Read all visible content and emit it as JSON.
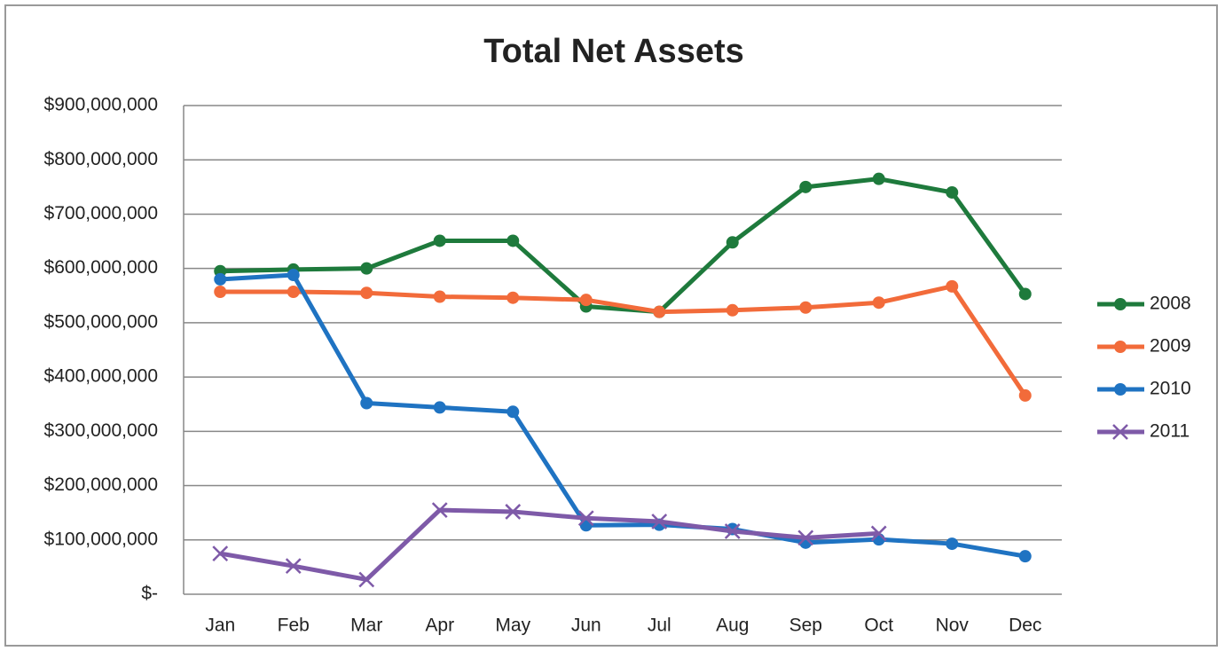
{
  "chart_data": {
    "type": "line",
    "title": "Total Net Assets",
    "categories": [
      "Jan",
      "Feb",
      "Mar",
      "Apr",
      "May",
      "Jun",
      "Jul",
      "Aug",
      "Sep",
      "Oct",
      "Nov",
      "Dec"
    ],
    "series": [
      {
        "name": "2008",
        "color": "#1e7a3c",
        "marker": "circle",
        "values": [
          595000000,
          598000000,
          600000000,
          651000000,
          651000000,
          530000000,
          520000000,
          648000000,
          750000000,
          765000000,
          740000000,
          553000000
        ]
      },
      {
        "name": "2009",
        "color": "#f26b3a",
        "marker": "circle",
        "values": [
          557000000,
          557000000,
          555000000,
          548000000,
          546000000,
          542000000,
          520000000,
          523000000,
          528000000,
          537000000,
          567000000,
          366000000
        ]
      },
      {
        "name": "2010",
        "color": "#1f73c2",
        "marker": "circle",
        "values": [
          580000000,
          588000000,
          352000000,
          344000000,
          336000000,
          127000000,
          128000000,
          120000000,
          95000000,
          101000000,
          93000000,
          70000000
        ]
      },
      {
        "name": "2011",
        "color": "#7e5aa8",
        "marker": "x",
        "values": [
          75000000,
          52000000,
          27000000,
          155000000,
          152000000,
          140000000,
          134000000,
          116000000,
          104000000,
          112000000,
          null,
          null
        ]
      }
    ],
    "ylim": [
      0,
      900000000
    ],
    "yticks": [
      {
        "value": 0,
        "label": "$-"
      },
      {
        "value": 100000000,
        "label": "$100,000,000"
      },
      {
        "value": 200000000,
        "label": "$200,000,000"
      },
      {
        "value": 300000000,
        "label": "$300,000,000"
      },
      {
        "value": 400000000,
        "label": "$400,000,000"
      },
      {
        "value": 500000000,
        "label": "$500,000,000"
      },
      {
        "value": 600000000,
        "label": "$600,000,000"
      },
      {
        "value": 700000000,
        "label": "$700,000,000"
      },
      {
        "value": 800000000,
        "label": "$800,000,000"
      },
      {
        "value": 900000000,
        "label": "$900,000,000"
      }
    ],
    "grid": true,
    "legend": "right"
  }
}
